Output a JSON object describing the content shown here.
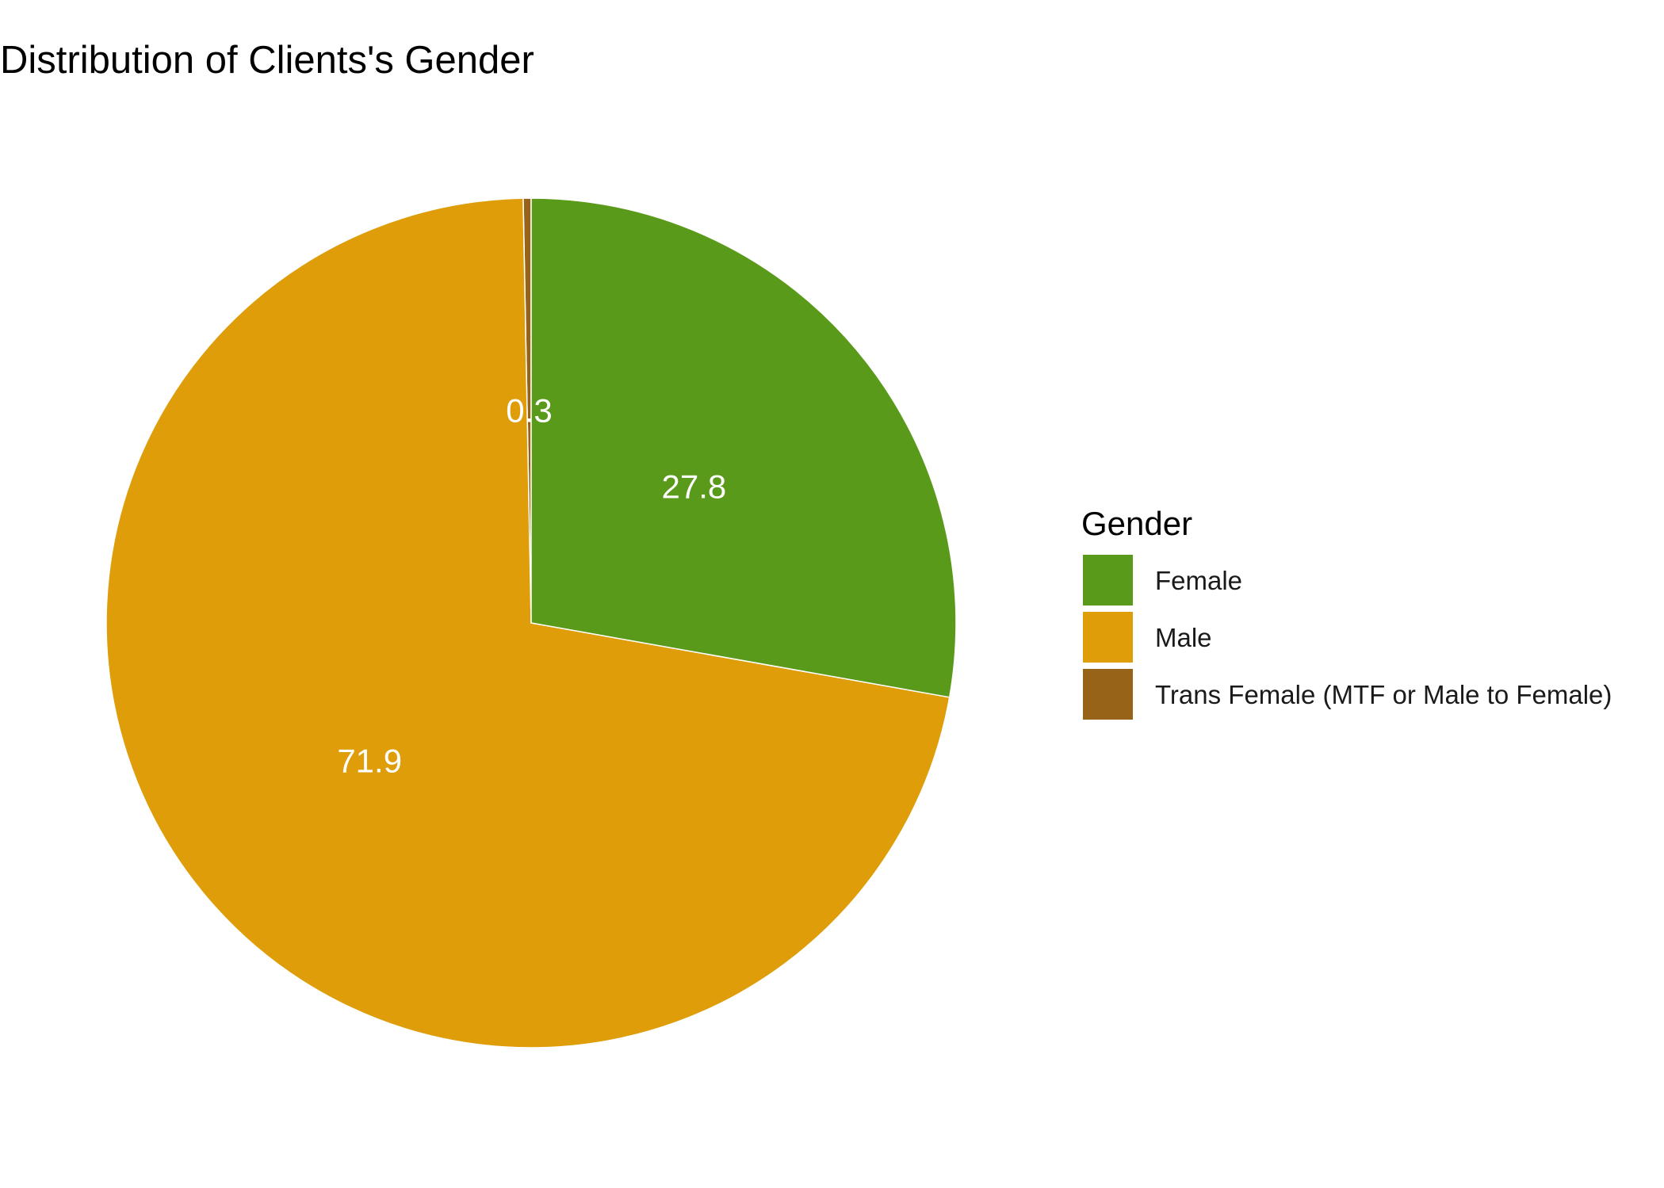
{
  "chart_data": {
    "type": "pie",
    "title": "Distribution of Clients's Gender",
    "legend_title": "Gender",
    "legend_position": "right",
    "categories": [
      "Female",
      "Male",
      "Trans Female (MTF or Male to Female)"
    ],
    "values": [
      27.8,
      71.9,
      0.3
    ],
    "data_labels": [
      "27.8",
      "71.9",
      "0.3"
    ],
    "colors": [
      "#5A9A1B",
      "#DE9D09",
      "#976319"
    ],
    "slice_border_color": "#ffffff"
  }
}
